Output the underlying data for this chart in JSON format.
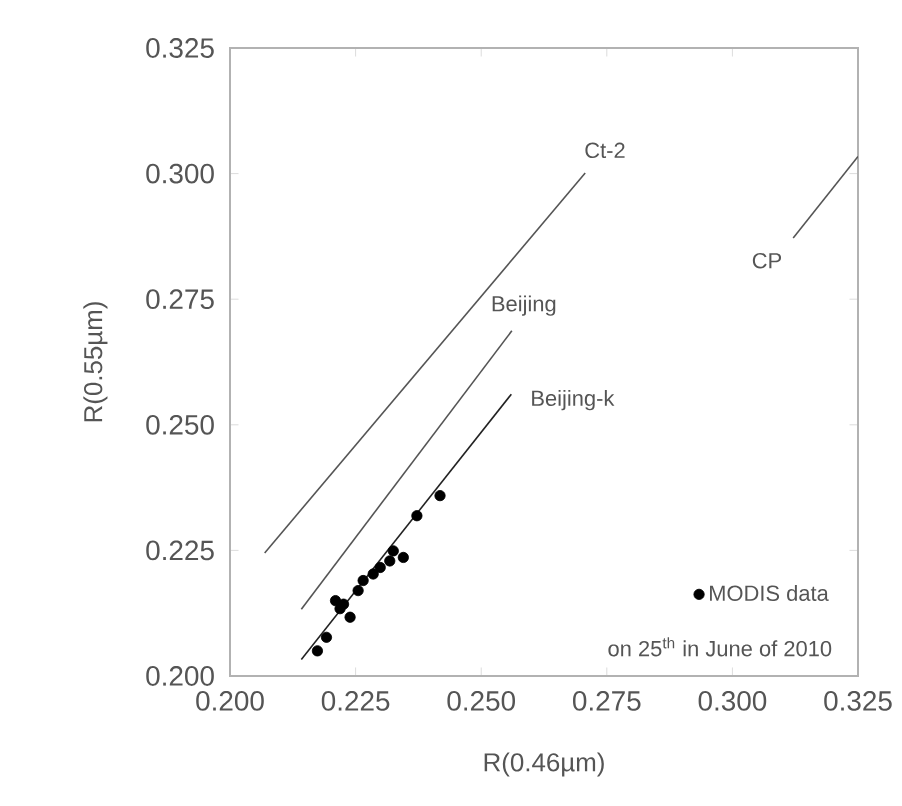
{
  "chart_data": {
    "type": "scatter",
    "xlabel": "R(0.46µm)",
    "ylabel": "R(0.55µm)",
    "xlim": [
      0.2,
      0.325
    ],
    "ylim": [
      0.2,
      0.325
    ],
    "xticks": [
      {
        "value": 0.2,
        "label": "0.200"
      },
      {
        "value": 0.225,
        "label": "0.225"
      },
      {
        "value": 0.25,
        "label": "0.250"
      },
      {
        "value": 0.275,
        "label": "0.275"
      },
      {
        "value": 0.3,
        "label": "0.300"
      },
      {
        "value": 0.325,
        "label": "0.325"
      }
    ],
    "yticks": [
      {
        "value": 0.2,
        "label": "0.200"
      },
      {
        "value": 0.225,
        "label": "0.225"
      },
      {
        "value": 0.25,
        "label": "0.250"
      },
      {
        "value": 0.275,
        "label": "0.275"
      },
      {
        "value": 0.3,
        "label": "0.300"
      },
      {
        "value": 0.325,
        "label": "0.325"
      }
    ],
    "grid": false,
    "legend": "bottom right",
    "annotations": [
      "on 25$^{th}$ in June of 2010"
    ],
    "series": [
      {
        "name": "MODIS data",
        "marker": "circle",
        "color": "#000000",
        "x": [
          0.2174,
          0.2192,
          0.221,
          0.2219,
          0.2239,
          0.2226,
          0.2255,
          0.2265,
          0.2285,
          0.2299,
          0.2318,
          0.2325,
          0.2345,
          0.2372,
          0.2418
        ],
        "values": [
          0.205,
          0.2077,
          0.215,
          0.2134,
          0.2117,
          0.2143,
          0.217,
          0.219,
          0.2203,
          0.2216,
          0.2229,
          0.2249,
          0.2236,
          0.2319,
          0.2359
        ]
      },
      {
        "name": "Ct-2",
        "type": "line",
        "marker": "none",
        "color": "#555555",
        "x": [
          0.2069,
          0.2707
        ],
        "values": [
          0.2245,
          0.3001
        ]
      },
      {
        "name": "Beijing",
        "type": "line",
        "marker": "none",
        "color": "#555555",
        "x": [
          0.2142,
          0.2561
        ],
        "values": [
          0.2133,
          0.2687
        ]
      },
      {
        "name": "Beijing-k",
        "type": "line",
        "marker": "none",
        "color": "#222222",
        "x": [
          0.2142,
          0.256
        ],
        "values": [
          0.2033,
          0.2561
        ]
      },
      {
        "name": "CP",
        "type": "line",
        "marker": "none",
        "color": "#555555",
        "x": [
          0.3121,
          0.325
        ],
        "values": [
          0.2872,
          0.3034
        ]
      }
    ]
  }
}
